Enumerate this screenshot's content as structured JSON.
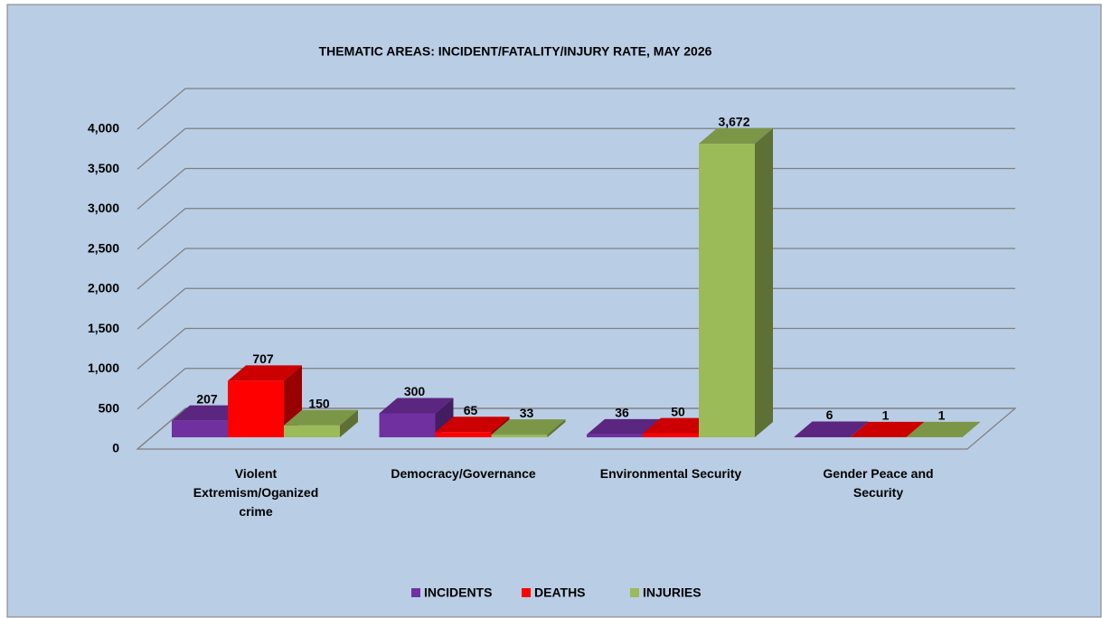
{
  "chart_data": {
    "type": "bar3d",
    "title": "THEMATIC AREAS: INCIDENT/FATALITY/INJURY RATE, MAY 2026",
    "categories": [
      "Violent Extremism/Oganized crime",
      "Democracy/Governance",
      "Environmental Security",
      "Gender Peace and Security"
    ],
    "series": [
      {
        "name": "INCIDENTS",
        "color": "#7030a0",
        "values": [
          207,
          300,
          36,
          6
        ],
        "value_labels": [
          "207",
          "300",
          "36",
          "6"
        ]
      },
      {
        "name": "DEATHS",
        "color": "#ff0000",
        "values": [
          707,
          65,
          50,
          1
        ],
        "value_labels": [
          "707",
          "65",
          "50",
          "1"
        ]
      },
      {
        "name": "INJURIES",
        "color": "#9bbb59",
        "values": [
          150,
          33,
          3672,
          1
        ],
        "value_labels": [
          "150",
          "33",
          "3,672",
          "1"
        ]
      }
    ],
    "ylim": [
      0,
      4500
    ],
    "yticks": [
      0,
      500,
      {
        "value": 1000,
        "label": "1,000"
      },
      {
        "value": 1500,
        "label": "1,500"
      },
      {
        "value": 2000,
        "label": "2,000"
      },
      {
        "value": 2500,
        "label": "2,500"
      },
      {
        "value": 3000,
        "label": "3,000"
      },
      {
        "value": 3500,
        "label": "3,500"
      },
      {
        "value": 4000,
        "label": "4,000"
      }
    ],
    "grid": true,
    "legend": "bottom"
  }
}
